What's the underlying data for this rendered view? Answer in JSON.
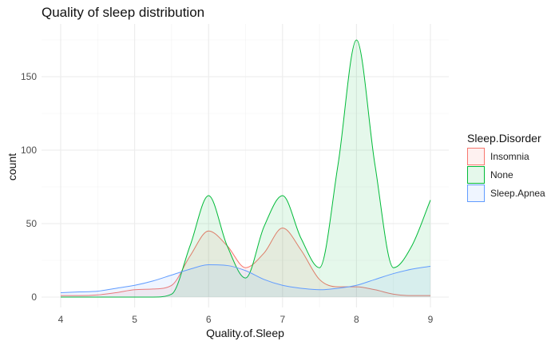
{
  "chart_data": {
    "type": "area",
    "title": "Quality of sleep distribution",
    "xlabel": "Quality.of.Sleep",
    "ylabel": "count",
    "xlim": [
      4,
      9
    ],
    "ylim": [
      0,
      175
    ],
    "x_ticks": [
      4,
      5,
      6,
      7,
      8,
      9
    ],
    "y_ticks": [
      0,
      50,
      100,
      150
    ],
    "grid": true,
    "legend": {
      "title": "Sleep.Disorder",
      "position": "right"
    },
    "series": [
      {
        "name": "Insomnia",
        "line_color": "#F8766D",
        "fill_color": "#F8766D",
        "x": [
          4,
          4.25,
          4.5,
          4.75,
          5,
          5.25,
          5.5,
          5.75,
          6,
          6.25,
          6.5,
          6.75,
          7,
          7.25,
          7.5,
          7.75,
          8,
          8.25,
          8.5,
          8.75,
          9
        ],
        "values": [
          1,
          1,
          1.5,
          3,
          5,
          5.5,
          8,
          28,
          45,
          35,
          20,
          30,
          47,
          32,
          12,
          7,
          7,
          5,
          2,
          1,
          1
        ]
      },
      {
        "name": "None",
        "line_color": "#00BA38",
        "fill_color": "#00BA38",
        "x": [
          4,
          4.25,
          4.5,
          4.75,
          5,
          5.25,
          5.5,
          5.75,
          6,
          6.25,
          6.5,
          6.75,
          7,
          7.25,
          7.5,
          7.75,
          8,
          8.25,
          8.5,
          8.75,
          9
        ],
        "values": [
          0,
          0,
          0,
          0,
          0,
          0,
          2,
          35,
          69,
          35,
          13,
          48,
          69,
          40,
          20,
          90,
          175,
          90,
          20,
          35,
          66
        ]
      },
      {
        "name": "Sleep.Apnea",
        "line_color": "#619CFF",
        "fill_color": "#619CFF",
        "x": [
          4,
          4.25,
          4.5,
          4.75,
          5,
          5.25,
          5.5,
          5.75,
          6,
          6.25,
          6.5,
          6.75,
          7,
          7.25,
          7.5,
          7.75,
          8,
          8.25,
          8.5,
          8.75,
          9
        ],
        "values": [
          3,
          3.5,
          4,
          6,
          8,
          11,
          15,
          19,
          22,
          21.5,
          18,
          12,
          8,
          6,
          5,
          6,
          8,
          12,
          16,
          19,
          21
        ]
      }
    ]
  }
}
